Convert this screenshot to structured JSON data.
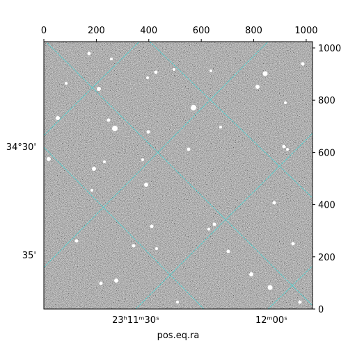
{
  "chart_data": {
    "type": "image",
    "x_label": "pos.eq.ra",
    "xlim": [
      0,
      1024
    ],
    "xticks": [
      0,
      200,
      400,
      600,
      800,
      1000
    ],
    "ylim": [
      0,
      1024
    ],
    "yticks": [
      0,
      200,
      400,
      600,
      800,
      1000
    ],
    "ra_tick_labels": [
      "23ʰ11ᵐ30ˢ",
      "12ᵐ00ˢ"
    ],
    "dec_tick_labels": [
      "34°30'",
      "35'"
    ],
    "grid_color": "#3fd6d6"
  }
}
